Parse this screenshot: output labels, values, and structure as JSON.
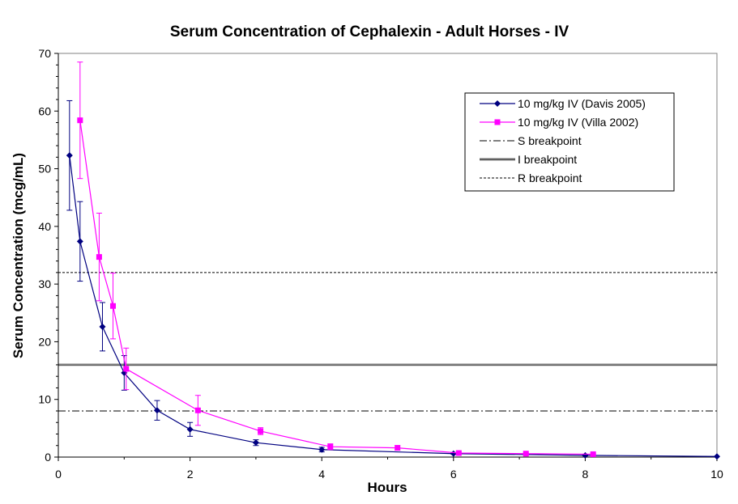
{
  "chart_data": {
    "type": "line",
    "title": "Serum Concentration of Cephalexin - Adult Horses - IV",
    "xlabel": "Hours",
    "ylabel": "Serum Concentration (mcg/mL)",
    "xlim": [
      0,
      10
    ],
    "ylim": [
      0,
      70
    ],
    "x_ticks": [
      "0",
      "2",
      "4",
      "6",
      "8",
      "10"
    ],
    "y_ticks": [
      "0",
      "10",
      "20",
      "30",
      "40",
      "50",
      "60",
      "70"
    ],
    "grid": false,
    "legend_position": "top-right",
    "series": [
      {
        "name": "10 mg/kg IV (Davis 2005)",
        "color": "#000080",
        "marker": "diamond",
        "points": [
          {
            "x": 0.17,
            "y": 52.3,
            "err": 9.5
          },
          {
            "x": 0.33,
            "y": 37.4,
            "err": 6.9
          },
          {
            "x": 0.67,
            "y": 22.6,
            "err": 4.2
          },
          {
            "x": 1.0,
            "y": 14.6,
            "err": 3.0
          },
          {
            "x": 1.5,
            "y": 8.1,
            "err": 1.7
          },
          {
            "x": 2.0,
            "y": 4.8,
            "err": 1.2
          },
          {
            "x": 3.0,
            "y": 2.5,
            "err": 0.5
          },
          {
            "x": 4.0,
            "y": 1.3,
            "err": 0.4
          },
          {
            "x": 6.0,
            "y": 0.6,
            "err": 0.1
          },
          {
            "x": 8.0,
            "y": 0.3,
            "err": 0.1
          },
          {
            "x": 10.0,
            "y": 0.1,
            "err": 0.0
          }
        ]
      },
      {
        "name": "10 mg/kg IV (Villa 2002)",
        "color": "#FF00FF",
        "marker": "square",
        "points": [
          {
            "x": 0.33,
            "y": 58.4,
            "err": 10.1
          },
          {
            "x": 0.62,
            "y": 34.7,
            "err": 7.6
          },
          {
            "x": 0.83,
            "y": 26.2,
            "err": 5.7
          },
          {
            "x": 1.03,
            "y": 15.3,
            "err": 3.6
          },
          {
            "x": 2.12,
            "y": 8.1,
            "err": 2.6
          },
          {
            "x": 3.07,
            "y": 4.5,
            "err": 0.6
          },
          {
            "x": 4.13,
            "y": 1.8,
            "err": 0.5
          },
          {
            "x": 5.15,
            "y": 1.6,
            "err": 0.4
          },
          {
            "x": 6.08,
            "y": 0.7,
            "err": 0.2
          },
          {
            "x": 7.1,
            "y": 0.6,
            "err": 0.1
          },
          {
            "x": 8.12,
            "y": 0.5,
            "err": 0.1
          }
        ]
      }
    ],
    "reference_lines": [
      {
        "name": "S breakpoint",
        "y": 8,
        "style": "dashdot"
      },
      {
        "name": "I breakpoint",
        "y": 16,
        "style": "solid-double"
      },
      {
        "name": "R breakpoint",
        "y": 32,
        "style": "dashed"
      }
    ]
  }
}
